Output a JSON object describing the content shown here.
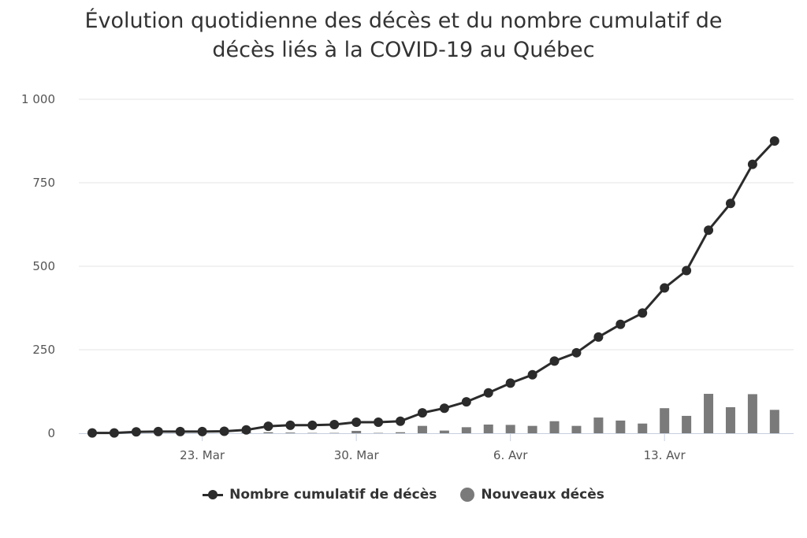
{
  "chart_data": {
    "type": "bar+line",
    "title": "Évolution quotidienne des décès et du nombre cumulatif de décès liés à la COVID-19 au Québec",
    "title_lines": [
      "Évolution quotidienne des décès et du nombre cumulatif de",
      "décès liés à la COVID-19 au Québec"
    ],
    "x_tick_labels": [
      {
        "label": "23. Mar",
        "index": 5
      },
      {
        "label": "30. Mar",
        "index": 12
      },
      {
        "label": "6. Avr",
        "index": 19
      },
      {
        "label": "13. Avr",
        "index": 26
      }
    ],
    "y_ticks": [
      {
        "value": 0,
        "label": "0"
      },
      {
        "value": 250,
        "label": "250"
      },
      {
        "value": 500,
        "label": "500"
      },
      {
        "value": 750,
        "label": "750"
      },
      {
        "value": 1000,
        "label": "1 000"
      }
    ],
    "ylim": [
      0,
      1000
    ],
    "grid": true,
    "legend_position": "bottom",
    "series": [
      {
        "name": "Nombre cumulatif de décès",
        "type": "line",
        "color": "#2b2b2b",
        "values": [
          1,
          1,
          4,
          5,
          5,
          5,
          6,
          10,
          21,
          24,
          24,
          26,
          33,
          33,
          36,
          61,
          75,
          94,
          121,
          150,
          175,
          216,
          241,
          288,
          326,
          360,
          435,
          487,
          608,
          688,
          805,
          875
        ]
      },
      {
        "name": "Nouveaux décès",
        "type": "bar",
        "color": "#7a7a7a",
        "values": [
          1,
          0,
          3,
          1,
          0,
          0,
          1,
          4,
          3,
          2,
          1,
          1,
          7,
          1,
          3,
          22,
          8,
          18,
          26,
          25,
          22,
          36,
          22,
          47,
          38,
          29,
          75,
          52,
          118,
          78,
          117,
          70
        ]
      }
    ]
  }
}
